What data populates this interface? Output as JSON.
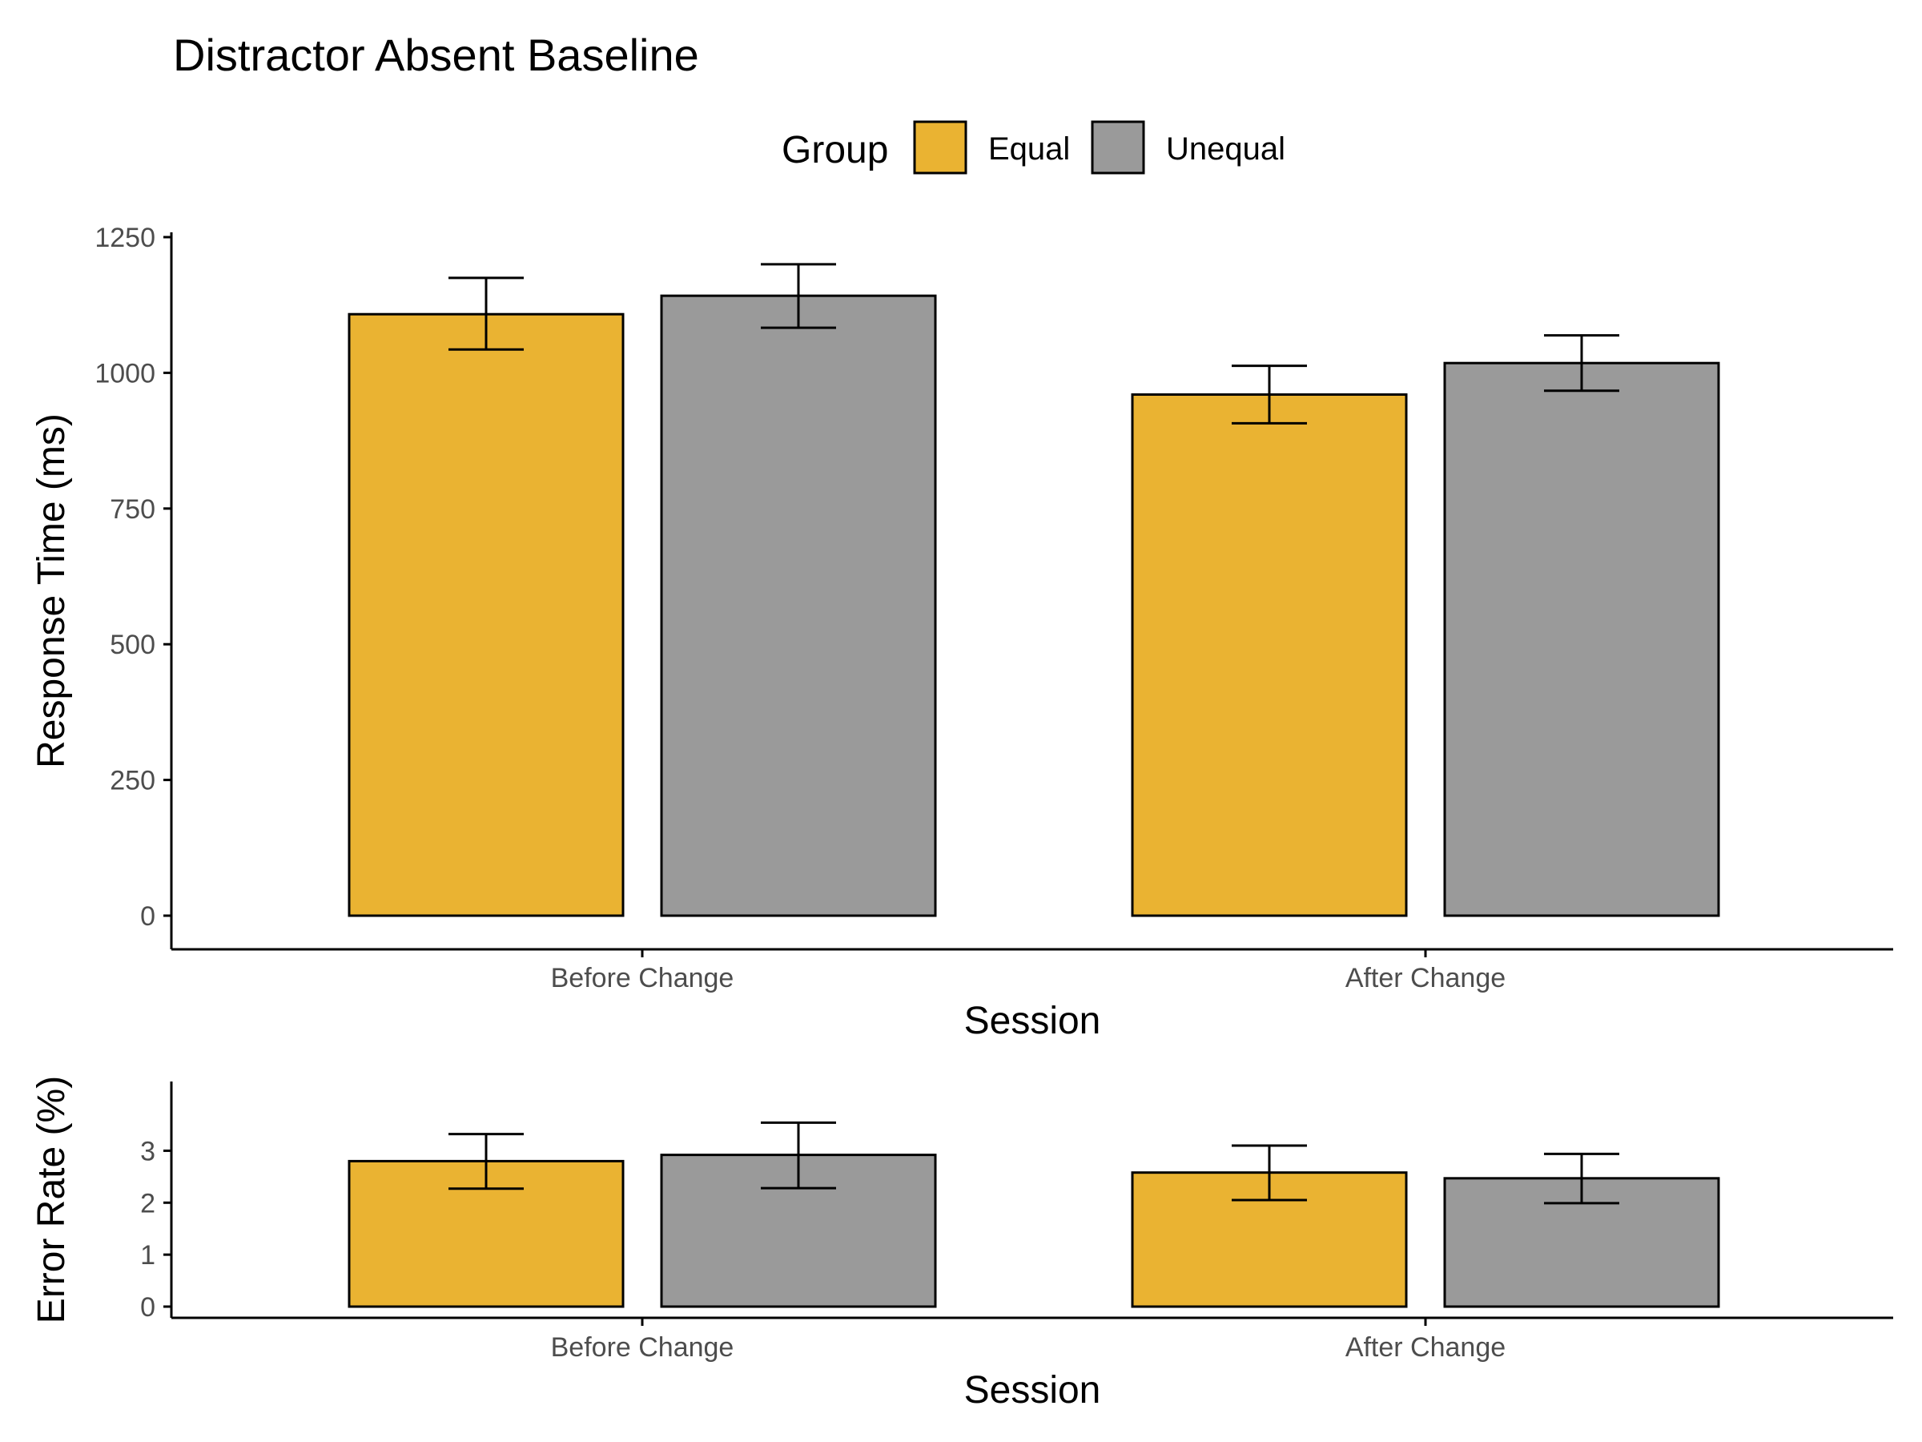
{
  "title": "Distractor Absent Baseline",
  "legend": {
    "title": "Group",
    "items": [
      {
        "label": "Equal",
        "color": "#EAB332"
      },
      {
        "label": "Unequal",
        "color": "#9A9A9A"
      }
    ]
  },
  "chart_data": [
    {
      "type": "bar",
      "panel": "top",
      "categories": [
        "Before Change",
        "After Change"
      ],
      "series": [
        {
          "name": "Equal",
          "values": [
            1108,
            960
          ],
          "error_low": [
            1043,
            907
          ],
          "error_high": [
            1175,
            1013
          ]
        },
        {
          "name": "Unequal",
          "values": [
            1142,
            1018
          ],
          "error_low": [
            1083,
            967
          ],
          "error_high": [
            1200,
            1069
          ]
        }
      ],
      "xlabel": "Session",
      "ylabel": "Response Time (ms)",
      "ylim": [
        0,
        1250
      ],
      "yticks": [
        0,
        250,
        500,
        750,
        1000,
        1250
      ],
      "grid": false
    },
    {
      "type": "bar",
      "panel": "bottom",
      "categories": [
        "Before Change",
        "After Change"
      ],
      "series": [
        {
          "name": "Equal",
          "values": [
            2.8,
            2.58
          ],
          "error_low": [
            2.27,
            2.05
          ],
          "error_high": [
            3.32,
            3.1
          ]
        },
        {
          "name": "Unequal",
          "values": [
            2.92,
            2.47
          ],
          "error_low": [
            2.28,
            1.99
          ],
          "error_high": [
            3.54,
            2.94
          ]
        }
      ],
      "xlabel": "Session",
      "ylabel": "Error Rate (%)",
      "ylim": [
        0,
        3.5
      ],
      "yticks": [
        0,
        1,
        2,
        3
      ],
      "grid": false
    }
  ]
}
